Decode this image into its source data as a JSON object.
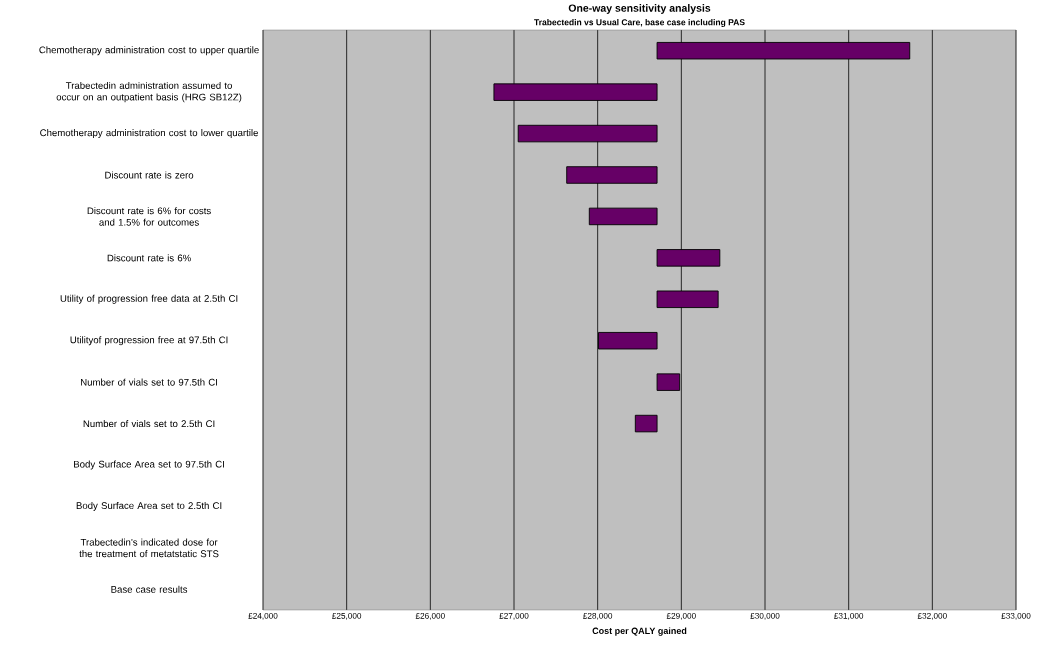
{
  "chart_data": {
    "type": "bar",
    "orientation": "horizontal",
    "title": "One-way sensitivity analysis",
    "subtitle": "Trabectedin vs Usual Care, base case including PAS",
    "xlabel": "Cost per QALY gained",
    "categories": [
      "Chemotherapy administration cost to upper quartile",
      "Trabectedin administration assumed to occur on an outpatient basis (HRG SB12Z)",
      "Chemotherapy administration cost to lower quartile",
      "Discount rate is zero",
      "Discount rate is 6% for costs and 1.5% for outcomes",
      "Discount rate is 6%",
      "Utility of progression free data at 2.5th CI",
      "Utilityof progression free at 97.5th CI",
      "Number of vials set to 97.5th CI",
      "Number of vials set to 2.5th CI",
      "Body Surface Area set to 97.5th CI",
      "Body Surface Area set to 2.5th CI",
      "Trabectedin’s indicated dose for the treatment of metatstatic STS",
      "Base case results"
    ],
    "base": [
      28710,
      28710,
      28710,
      28710,
      28710,
      28710,
      28710,
      28710,
      28710,
      28710,
      null,
      null,
      null,
      null
    ],
    "values": [
      3020,
      -1950,
      -1660,
      -1080,
      -810,
      750,
      730,
      -700,
      270,
      -260,
      null,
      null,
      null,
      null
    ],
    "color": "#660066",
    "xlim": [
      24000,
      33000
    ],
    "xticks": [
      {
        "value": 24000,
        "label": "£24,000"
      },
      {
        "value": 25000,
        "label": "£25,000"
      },
      {
        "value": 26000,
        "label": "£26,000"
      },
      {
        "value": 27000,
        "label": "£27,000"
      },
      {
        "value": 28000,
        "label": "£28,000"
      },
      {
        "value": 29000,
        "label": "£29,000"
      },
      {
        "value": 30000,
        "label": "£30,000"
      },
      {
        "value": 31000,
        "label": "£31,000"
      },
      {
        "value": 32000,
        "label": "£32,000"
      },
      {
        "value": 33000,
        "label": "£33,000"
      }
    ],
    "grid": "x"
  }
}
